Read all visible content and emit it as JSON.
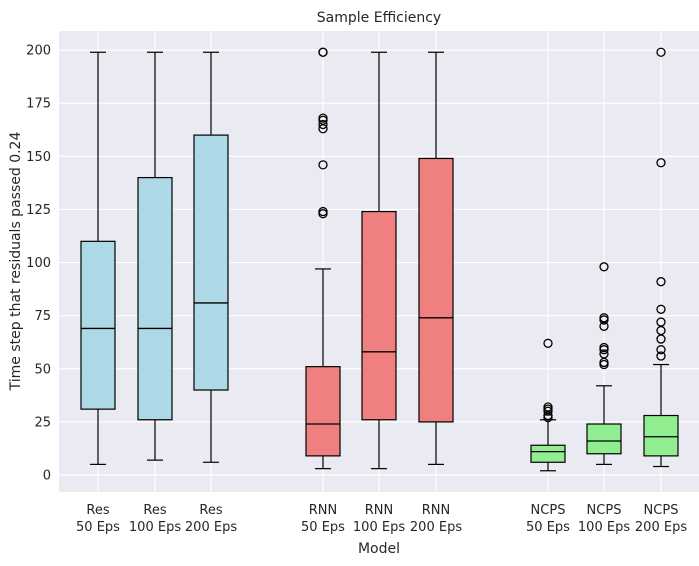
{
  "chart_data": {
    "type": "box",
    "title": "Sample Efficiency",
    "xlabel": "Model",
    "ylabel": "Time step that residuals passed 0.24",
    "ylim": [
      -8,
      209
    ],
    "yticks": [
      0,
      25,
      50,
      75,
      100,
      125,
      150,
      175,
      200
    ],
    "grid": true,
    "colors": {
      "Res": "#add8e6",
      "RNN": "#f08080",
      "NCPS": "#90ee90",
      "background": "#eaeaf2"
    },
    "boxes": [
      {
        "group": "Res",
        "label": [
          "Res",
          "50 Eps"
        ],
        "whisker_low": 5,
        "q1": 31,
        "median": 69,
        "q3": 110,
        "whisker_high": 199,
        "fliers": []
      },
      {
        "group": "Res",
        "label": [
          "Res",
          "100 Eps"
        ],
        "whisker_low": 7,
        "q1": 26,
        "median": 69,
        "q3": 140,
        "whisker_high": 199,
        "fliers": []
      },
      {
        "group": "Res",
        "label": [
          "Res",
          "200 Eps"
        ],
        "whisker_low": 6,
        "q1": 40,
        "median": 81,
        "q3": 160,
        "whisker_high": 199,
        "fliers": []
      },
      {
        "group": "RNN",
        "label": [
          "RNN",
          "50 Eps"
        ],
        "whisker_low": 3,
        "q1": 9,
        "median": 24,
        "q3": 51,
        "whisker_high": 97,
        "fliers": [
          123,
          124,
          146,
          163,
          165,
          167,
          168,
          199,
          199
        ]
      },
      {
        "group": "RNN",
        "label": [
          "RNN",
          "100 Eps"
        ],
        "whisker_low": 3,
        "q1": 26,
        "median": 58,
        "q3": 124,
        "whisker_high": 199,
        "fliers": []
      },
      {
        "group": "RNN",
        "label": [
          "RNN",
          "200 Eps"
        ],
        "whisker_low": 5,
        "q1": 25,
        "median": 74,
        "q3": 149,
        "whisker_high": 199,
        "fliers": []
      },
      {
        "group": "NCPS",
        "label": [
          "NCPS",
          "50 Eps"
        ],
        "whisker_low": 2,
        "q1": 6,
        "median": 11,
        "q3": 14,
        "whisker_high": 26,
        "fliers": [
          27,
          28,
          30,
          31,
          32,
          62
        ]
      },
      {
        "group": "NCPS",
        "label": [
          "NCPS",
          "100 Eps"
        ],
        "whisker_low": 5,
        "q1": 10,
        "median": 16,
        "q3": 24,
        "whisker_high": 42,
        "fliers": [
          52,
          53,
          57,
          59,
          60,
          70,
          73,
          74,
          98
        ]
      },
      {
        "group": "NCPS",
        "label": [
          "NCPS",
          "200 Eps"
        ],
        "whisker_low": 4,
        "q1": 9,
        "median": 18,
        "q3": 28,
        "whisker_high": 52,
        "fliers": [
          56,
          59,
          64,
          68,
          72,
          78,
          91,
          147,
          199
        ]
      }
    ]
  }
}
